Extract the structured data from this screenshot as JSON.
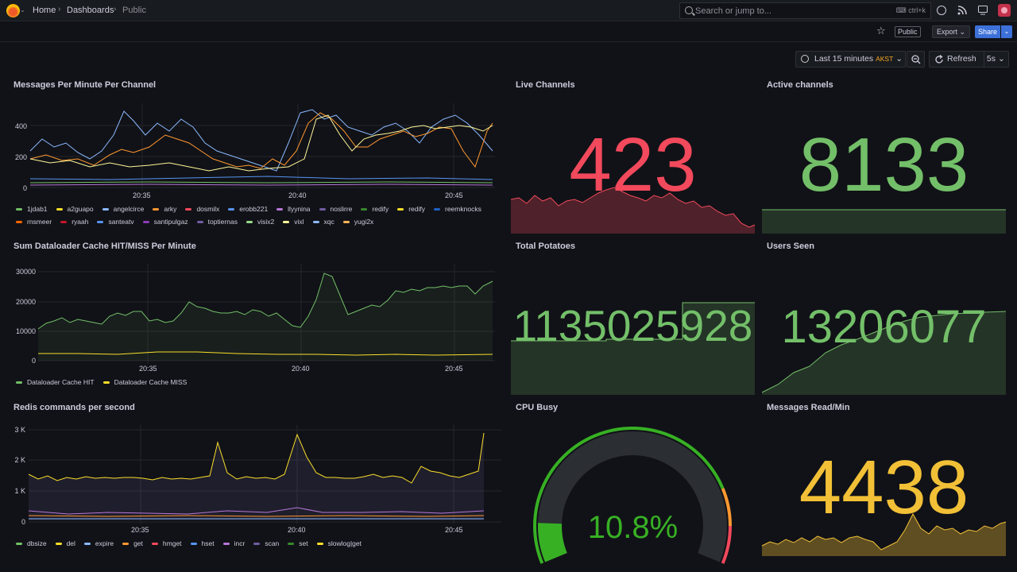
{
  "topbar": {
    "breadcrumb": [
      "Home",
      "Dashboards",
      "Public"
    ],
    "search_placeholder": "Search or jump to...",
    "search_shortcut": "ctrl+k"
  },
  "toolbar": {
    "public_badge": "Public",
    "export_label": "Export",
    "share_label": "Share"
  },
  "timepicker": {
    "range": "Last 15 minutes",
    "timezone": "AKST",
    "refresh_label": "Refresh",
    "interval": "5s"
  },
  "panels": {
    "messages": {
      "title": "Messages Per Minute Per Channel",
      "yticks": [
        "400",
        "200",
        "0"
      ],
      "xticks": [
        "20:35",
        "20:40",
        "20:45"
      ],
      "legend": [
        {
          "name": "1jdab1",
          "color": "#73bf69"
        },
        {
          "name": "a2guapo",
          "color": "#fade2a"
        },
        {
          "name": "angelcirce",
          "color": "#8ab8ff"
        },
        {
          "name": "arky",
          "color": "#ff9830"
        },
        {
          "name": "dosmilx",
          "color": "#f2495c"
        },
        {
          "name": "erobb221",
          "color": "#5794f2"
        },
        {
          "name": "llyynina",
          "color": "#b877d9"
        },
        {
          "name": "noslirre",
          "color": "#705da0"
        },
        {
          "name": "redify",
          "color": "#37872d"
        },
        {
          "name": "redify",
          "color": "#fade2a"
        },
        {
          "name": "reemknocks",
          "color": "#1f60c4"
        },
        {
          "name": "rnsmeer",
          "color": "#fa6400"
        },
        {
          "name": "ryaah",
          "color": "#c4162a"
        },
        {
          "name": "santeatv",
          "color": "#5794f2"
        },
        {
          "name": "santipulgaz",
          "color": "#8f3bb8"
        },
        {
          "name": "toptiernas",
          "color": "#705da0"
        },
        {
          "name": "visix2",
          "color": "#96d98d"
        },
        {
          "name": "vixl",
          "color": "#fff899"
        },
        {
          "name": "xqc",
          "color": "#8ab8ff"
        },
        {
          "name": "yugi2x",
          "color": "#ffb357"
        }
      ]
    },
    "dataloader": {
      "title": "Sum Dataloader Cache HIT/MISS Per Minute",
      "yticks": [
        "30000",
        "20000",
        "10000",
        "0"
      ],
      "xticks": [
        "20:35",
        "20:40",
        "20:45"
      ],
      "legend": [
        {
          "name": "Dataloader Cache HIT",
          "color": "#73bf69"
        },
        {
          "name": "Dataloader Cache MISS",
          "color": "#fade2a"
        }
      ]
    },
    "redis": {
      "title": "Redis commands per second",
      "yticks": [
        "3 K",
        "2 K",
        "1 K",
        "0"
      ],
      "xticks": [
        "20:35",
        "20:40",
        "20:45"
      ],
      "legend": [
        {
          "name": "dbsize",
          "color": "#73bf69"
        },
        {
          "name": "del",
          "color": "#fade2a"
        },
        {
          "name": "expire",
          "color": "#8ab8ff"
        },
        {
          "name": "get",
          "color": "#ff9830"
        },
        {
          "name": "hmget",
          "color": "#f2495c"
        },
        {
          "name": "hset",
          "color": "#5794f2"
        },
        {
          "name": "incr",
          "color": "#b877d9"
        },
        {
          "name": "scan",
          "color": "#705da0"
        },
        {
          "name": "set",
          "color": "#37872d"
        },
        {
          "name": "slowlog|get",
          "color": "#fade2a"
        }
      ]
    },
    "live_channels": {
      "title": "Live Channels",
      "value": "423",
      "color": "#f2495c"
    },
    "active_channels": {
      "title": "Active channels",
      "value": "8133",
      "color": "#73bf69"
    },
    "total_potatoes": {
      "title": "Total Potatoes",
      "value": "1135025928",
      "color": "#73bf69"
    },
    "users_seen": {
      "title": "Users Seen",
      "value": "13206077",
      "color": "#73bf69"
    },
    "cpu_busy": {
      "title": "CPU Busy",
      "value": "10.8%",
      "percent": 10.8,
      "color": "#37b024"
    },
    "messages_read": {
      "title": "Messages Read/Min",
      "value": "4438",
      "color": "#f2c037"
    }
  },
  "icons": [
    "grafana-logo-icon",
    "search-icon",
    "keyboard-icon",
    "help-icon",
    "rss-icon",
    "monitor-icon",
    "star-icon",
    "clock-icon",
    "zoom-out-icon",
    "refresh-icon"
  ]
}
